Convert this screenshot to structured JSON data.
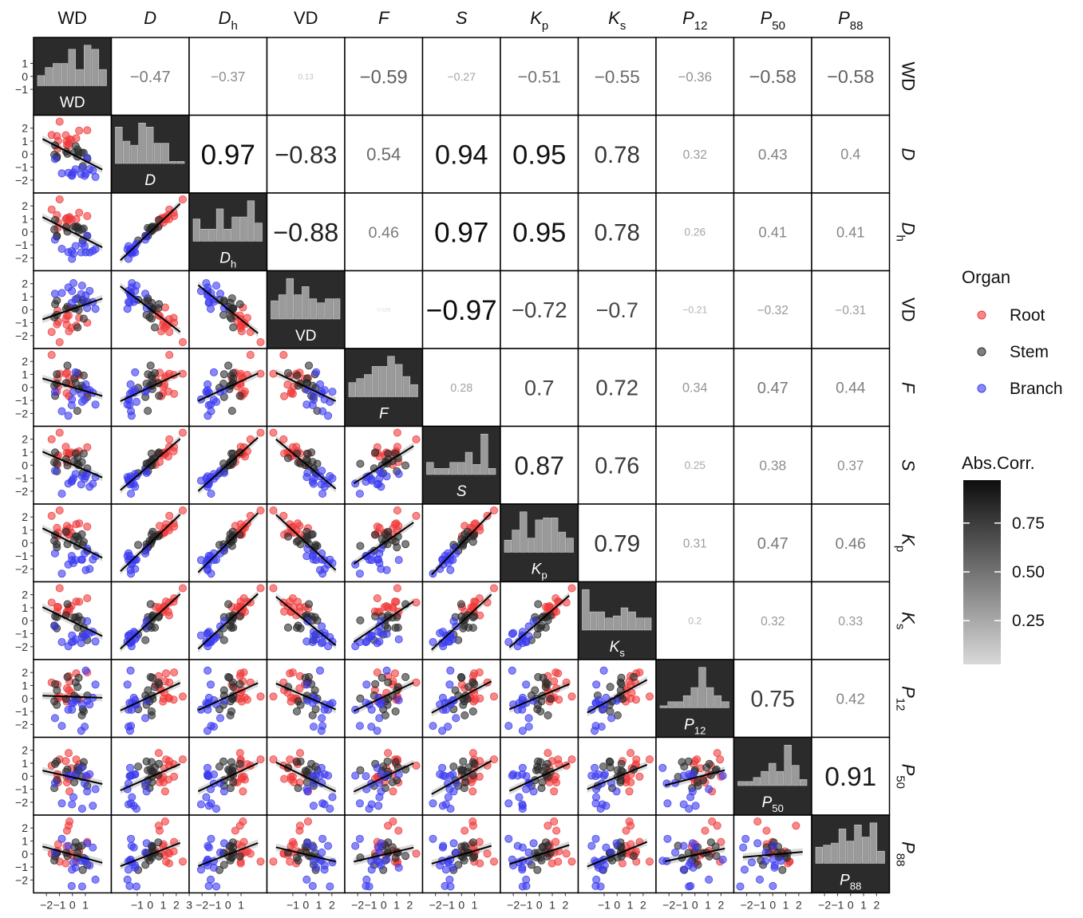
{
  "chart_data": {
    "type": "scatter-matrix",
    "variables": [
      {
        "key": "WD",
        "base": "WD",
        "sub": "",
        "italic": false
      },
      {
        "key": "D",
        "base": "D",
        "sub": "",
        "italic": true
      },
      {
        "key": "Dh",
        "base": "D",
        "sub": "h",
        "italic": true
      },
      {
        "key": "VD",
        "base": "VD",
        "sub": "",
        "italic": false
      },
      {
        "key": "F",
        "base": "F",
        "sub": "",
        "italic": true
      },
      {
        "key": "S",
        "base": "S",
        "sub": "",
        "italic": true
      },
      {
        "key": "Kp",
        "base": "K",
        "sub": "p",
        "italic": true
      },
      {
        "key": "Ks",
        "base": "K",
        "sub": "s",
        "italic": true
      },
      {
        "key": "P12",
        "base": "P",
        "sub": "12",
        "italic": true
      },
      {
        "key": "P50",
        "base": "P",
        "sub": "50",
        "italic": true
      },
      {
        "key": "P88",
        "base": "P",
        "sub": "88",
        "italic": true
      }
    ],
    "correlation_labels": [
      [
        null,
        "−0.47",
        "−0.37",
        "0.13",
        "−0.59",
        "−0.27",
        "−0.51",
        "−0.55",
        "−0.36",
        "−0.58",
        "−0.58"
      ],
      [
        null,
        null,
        "0.97",
        "−0.83",
        "0.54",
        "0.94",
        "0.95",
        "0.78",
        "0.32",
        "0.43",
        "0.4"
      ],
      [
        null,
        null,
        null,
        "−0.88",
        "0.46",
        "0.97",
        "0.95",
        "0.78",
        "0.26",
        "0.41",
        "0.41"
      ],
      [
        null,
        null,
        null,
        null,
        "0.026",
        "−0.97",
        "−0.72",
        "−0.7",
        "−0.21",
        "−0.32",
        "−0.31"
      ],
      [
        null,
        null,
        null,
        null,
        null,
        "0.28",
        "0.7",
        "0.72",
        "0.34",
        "0.47",
        "0.44"
      ],
      [
        null,
        null,
        null,
        null,
        null,
        null,
        "0.87",
        "0.76",
        "0.25",
        "0.38",
        "0.37"
      ],
      [
        null,
        null,
        null,
        null,
        null,
        null,
        null,
        "0.79",
        "0.31",
        "0.47",
        "0.46"
      ],
      [
        null,
        null,
        null,
        null,
        null,
        null,
        null,
        null,
        "0.2",
        "0.32",
        "0.33"
      ],
      [
        null,
        null,
        null,
        null,
        null,
        null,
        null,
        null,
        null,
        "0.75",
        "0.42"
      ],
      [
        null,
        null,
        null,
        null,
        null,
        null,
        null,
        null,
        null,
        null,
        "0.91"
      ]
    ],
    "histograms": [
      [
        0.25,
        0.45,
        0.55,
        0.55,
        0.9,
        0.4,
        1.0,
        0.9,
        0.4
      ],
      [
        0.9,
        0.55,
        0.45,
        1.0,
        0.9,
        0.5,
        0.5,
        0.05,
        0.05
      ],
      [
        0.55,
        0.3,
        0.3,
        0.8,
        0.3,
        0.6,
        0.6,
        1.0,
        0.45
      ],
      [
        0.45,
        0.6,
        1.0,
        0.6,
        0.8,
        0.5,
        0.4,
        0.5,
        0.5
      ],
      [
        0.35,
        0.45,
        0.55,
        0.75,
        0.75,
        1.0,
        0.8,
        0.5,
        0.3
      ],
      [
        0.3,
        0.15,
        0.15,
        0.3,
        0.3,
        0.55,
        0.25,
        1.0,
        0.15
      ],
      [
        0.3,
        0.55,
        1.0,
        0.35,
        0.8,
        0.85,
        0.85,
        0.5,
        0.35
      ],
      [
        1.0,
        0.45,
        0.45,
        0.3,
        0.35,
        0.55,
        0.45,
        0.3,
        0.3
      ],
      [
        0.05,
        0.15,
        0.15,
        0.3,
        0.5,
        1.0,
        0.5,
        0.3,
        0.15
      ],
      [
        0.1,
        0.1,
        0.2,
        0.35,
        0.55,
        0.35,
        1.0,
        0.5,
        0.15
      ],
      [
        0.4,
        0.45,
        0.5,
        0.85,
        0.55,
        0.95,
        0.65,
        1.0,
        0.3
      ]
    ],
    "x_axis_ticks": [
      [
        "-2",
        "-1",
        "0",
        "1"
      ],
      [
        "-1",
        "0",
        "1",
        "2",
        "3"
      ],
      [
        "-2",
        "-1",
        "0",
        "1"
      ],
      [
        "-1",
        "0",
        "1",
        "2"
      ],
      [
        "-2",
        "-1",
        "0",
        "1",
        "2"
      ],
      [
        "-2",
        "-1",
        "0",
        "1"
      ],
      [
        "-2",
        "-1",
        "0",
        "1",
        "2"
      ],
      [
        "-1",
        "0",
        "1",
        "2"
      ],
      [
        "-2",
        "-1",
        "0",
        "1",
        "2"
      ],
      [
        "-2",
        "-1",
        "0",
        "1",
        "2"
      ],
      [
        "-2",
        "-1",
        "0",
        "1",
        "2"
      ]
    ],
    "y_axis_ticks": [
      "-2",
      "-1",
      "0",
      "1",
      "2"
    ],
    "series": [
      {
        "name": "Root",
        "color": "#F03A3A"
      },
      {
        "name": "Stem",
        "color": "#2B2B2B"
      },
      {
        "name": "Branch",
        "color": "#3A3AF0"
      }
    ],
    "legend": {
      "organ_title": "Organ",
      "abs_corr_title": "Abs.Corr.",
      "colorbar_ticks": [
        "0.75",
        "0.50",
        "0.25"
      ],
      "colorbar_values": [
        0.75,
        0.5,
        0.25
      ],
      "colorbar_range": [
        0.026,
        0.97
      ],
      "placement": "right"
    },
    "point_cloud_seed": 7
  }
}
